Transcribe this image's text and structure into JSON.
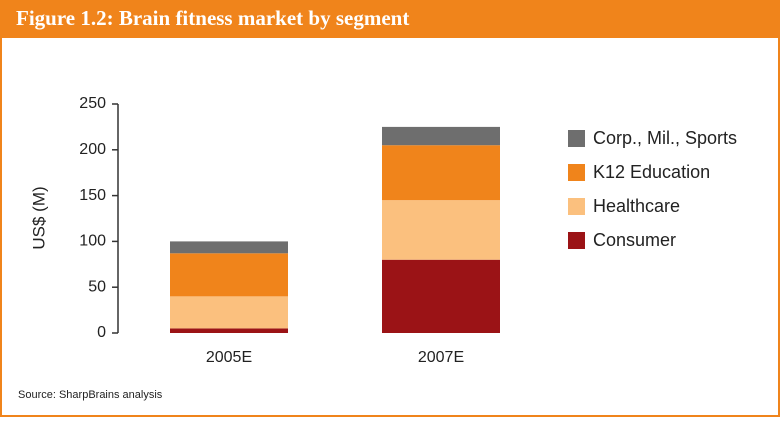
{
  "chart_data": {
    "type": "stacked-bar",
    "title": "Figure 1.2: Brain fitness market by segment",
    "y_label": "US$ (M)",
    "source": "Source: SharpBrains analysis",
    "categories": [
      "2005E",
      "2007E"
    ],
    "series": [
      {
        "name": "Consumer",
        "color": "#9b1316",
        "values": [
          5,
          80
        ]
      },
      {
        "name": "Healthcare",
        "color": "#fbc07e",
        "values": [
          35,
          65
        ]
      },
      {
        "name": "K12 Education",
        "color": "#f0841b",
        "values": [
          47,
          60
        ]
      },
      {
        "name": "Corp., Mil., Sports",
        "color": "#6e6e6e",
        "values": [
          13,
          20
        ]
      }
    ],
    "ylim": [
      0,
      250
    ],
    "yticks": [
      0,
      50,
      100,
      150,
      200,
      250
    ]
  }
}
